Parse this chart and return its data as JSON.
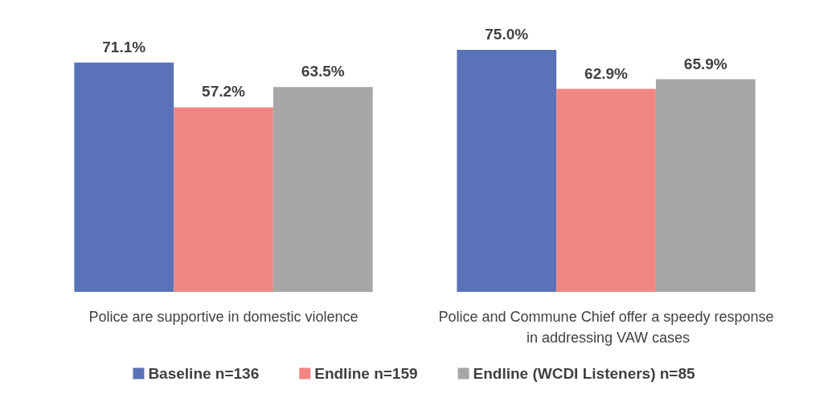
{
  "chart_data": {
    "type": "bar",
    "categories": [
      "Police are supportive in domestic violence",
      "Police and Commune Chief offer a speedy response in addressing VAW cases"
    ],
    "series": [
      {
        "name": "Baseline n=136",
        "color": "#5a73b8",
        "values": [
          71.1,
          75.0
        ],
        "value_labels": [
          "71.1%",
          "75.0%"
        ]
      },
      {
        "name": "Endline n=159",
        "color": "#f08783",
        "values": [
          57.2,
          62.9
        ],
        "value_labels": [
          "57.2%",
          "62.9%"
        ]
      },
      {
        "name": "Endline (WCDI Listeners) n=85",
        "color": "#a6a6a6",
        "values": [
          63.5,
          65.9
        ],
        "value_labels": [
          "63.5%",
          "65.9%"
        ]
      }
    ],
    "legend": "bottom",
    "grid": false
  }
}
